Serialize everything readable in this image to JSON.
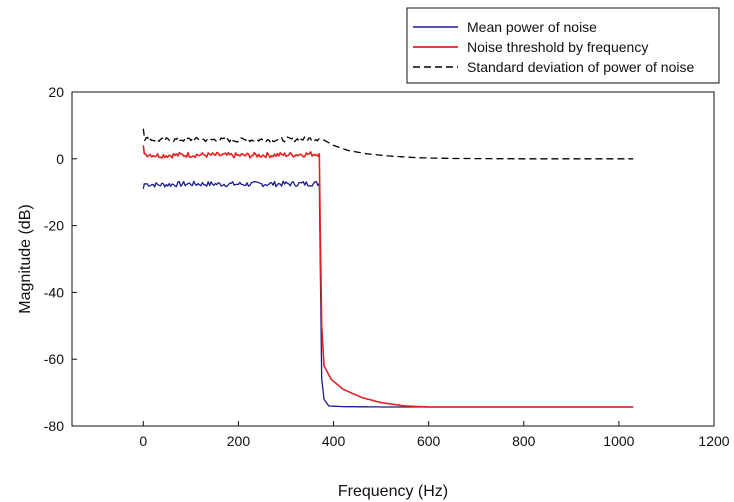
{
  "chart_data": {
    "type": "line",
    "xlabel": "Frequency (Hz)",
    "ylabel": "Magnitude (dB)",
    "xlim": [
      -150,
      1200
    ],
    "ylim": [
      -80,
      20
    ],
    "x_ticks": [
      0,
      200,
      400,
      600,
      800,
      1000,
      1200
    ],
    "y_ticks": [
      20,
      0,
      -20,
      -40,
      -60,
      -80
    ],
    "x_tick_labels": [
      "0",
      "200",
      "400",
      "600",
      "800",
      "1000",
      "1200"
    ],
    "y_tick_labels": [
      "20",
      "0",
      "-20",
      "-40",
      "-60",
      "-80"
    ],
    "grid": false,
    "legend_position": "top-right, outside plot",
    "series": [
      {
        "name": "Mean power of noise",
        "color": "#1c1c8c",
        "style": "solid",
        "points": [
          [
            0,
            -9
          ],
          [
            2,
            -7.5
          ],
          [
            30,
            -7.8
          ],
          [
            100,
            -7.5
          ],
          [
            200,
            -7.6
          ],
          [
            300,
            -7.5
          ],
          [
            370,
            -7.4
          ],
          [
            372,
            -30
          ],
          [
            375,
            -66
          ],
          [
            380,
            -72
          ],
          [
            390,
            -74
          ],
          [
            420,
            -74.2
          ],
          [
            500,
            -74.3
          ],
          [
            600,
            -74.3
          ],
          [
            800,
            -74.3
          ],
          [
            1030,
            -74.3
          ]
        ]
      },
      {
        "name": "Noise threshold by frequency",
        "color": "#e52222",
        "style": "solid",
        "points": [
          [
            0,
            4
          ],
          [
            2,
            1.5
          ],
          [
            30,
            1
          ],
          [
            100,
            1.2
          ],
          [
            200,
            1
          ],
          [
            300,
            1.2
          ],
          [
            370,
            1.5
          ],
          [
            372,
            -20
          ],
          [
            375,
            -50
          ],
          [
            380,
            -62
          ],
          [
            395,
            -66
          ],
          [
            420,
            -69
          ],
          [
            460,
            -71.5
          ],
          [
            500,
            -73
          ],
          [
            550,
            -74
          ],
          [
            600,
            -74.3
          ],
          [
            800,
            -74.3
          ],
          [
            1030,
            -74.3
          ]
        ]
      },
      {
        "name": "Standard deviation of power of noise",
        "color": "#000000",
        "style": "dashed",
        "points": [
          [
            0,
            9
          ],
          [
            3,
            6
          ],
          [
            30,
            5.6
          ],
          [
            100,
            5.8
          ],
          [
            200,
            5.6
          ],
          [
            300,
            5.8
          ],
          [
            375,
            6
          ],
          [
            400,
            4
          ],
          [
            430,
            2.5
          ],
          [
            470,
            1.5
          ],
          [
            520,
            0.8
          ],
          [
            580,
            0.3
          ],
          [
            650,
            0.1
          ],
          [
            800,
            0
          ],
          [
            1030,
            0
          ]
        ]
      }
    ]
  }
}
